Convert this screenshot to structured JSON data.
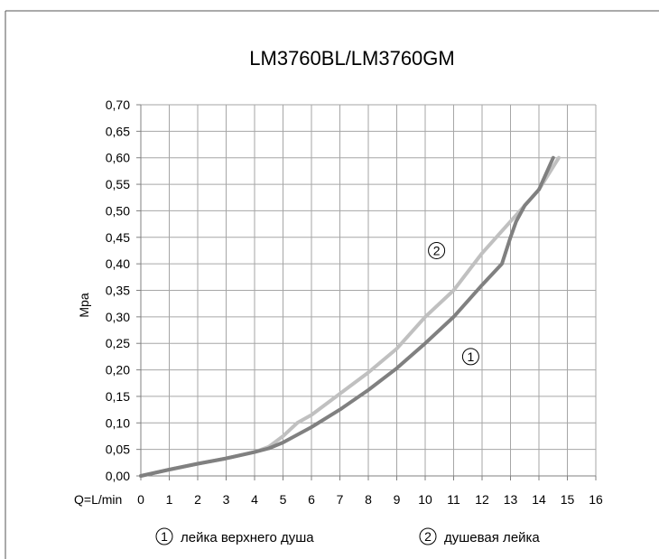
{
  "chart_data": {
    "type": "line",
    "title": "LM3760BL/LM3760GM",
    "ylabel": "Mpa",
    "xlabel_prefix": "Q=L/min",
    "xlim": [
      0,
      16
    ],
    "ylim": [
      0,
      0.7
    ],
    "x_ticks": [
      "0",
      "1",
      "2",
      "3",
      "4",
      "5",
      "6",
      "7",
      "8",
      "9",
      "10",
      "11",
      "12",
      "13",
      "14",
      "15",
      "16"
    ],
    "y_ticks": [
      "0,00",
      "0,05",
      "0,10",
      "0,15",
      "0,20",
      "0,25",
      "0,30",
      "0,35",
      "0,40",
      "0,45",
      "0,50",
      "0,55",
      "0,60",
      "0,65",
      "0,70"
    ],
    "grid": true,
    "legend_position": "bottom",
    "series": [
      {
        "marker": "1",
        "name": "лейка верхнего душа",
        "color": "#808080",
        "points": [
          [
            0,
            0
          ],
          [
            1,
            0.012
          ],
          [
            2,
            0.023
          ],
          [
            3,
            0.033
          ],
          [
            4,
            0.045
          ],
          [
            4.5,
            0.052
          ],
          [
            5,
            0.063
          ],
          [
            6,
            0.092
          ],
          [
            7,
            0.125
          ],
          [
            8,
            0.162
          ],
          [
            9,
            0.203
          ],
          [
            10,
            0.25
          ],
          [
            11,
            0.3
          ],
          [
            12,
            0.36
          ],
          [
            12.7,
            0.4
          ],
          [
            13,
            0.45
          ],
          [
            13.2,
            0.48
          ],
          [
            13.5,
            0.51
          ],
          [
            14,
            0.54
          ],
          [
            14.5,
            0.6
          ]
        ]
      },
      {
        "marker": "2",
        "name": "душевая лейка",
        "color": "#c0c0c0",
        "points": [
          [
            0,
            0
          ],
          [
            1,
            0.012
          ],
          [
            2,
            0.023
          ],
          [
            3,
            0.033
          ],
          [
            4,
            0.045
          ],
          [
            4.5,
            0.055
          ],
          [
            5,
            0.075
          ],
          [
            5.5,
            0.1
          ],
          [
            6,
            0.115
          ],
          [
            7,
            0.155
          ],
          [
            8,
            0.195
          ],
          [
            9,
            0.24
          ],
          [
            10,
            0.3
          ],
          [
            11,
            0.35
          ],
          [
            12,
            0.42
          ],
          [
            13,
            0.48
          ],
          [
            14,
            0.54
          ],
          [
            14.7,
            0.6
          ]
        ]
      }
    ],
    "markers": [
      {
        "label": "2",
        "x": 10.4,
        "y": 0.425
      },
      {
        "label": "1",
        "x": 11.6,
        "y": 0.225
      }
    ]
  }
}
